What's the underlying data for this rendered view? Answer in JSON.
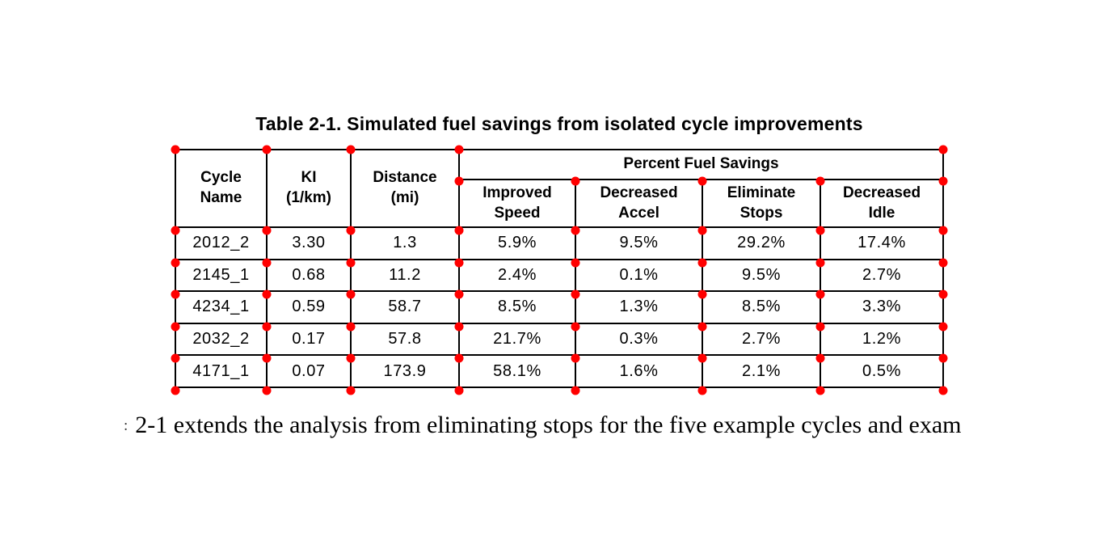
{
  "title": "Table 2-1. Simulated fuel savings from isolated cycle improvements",
  "table": {
    "header": {
      "cycle_name": "Cycle\nName",
      "ki": "KI\n(1/km)",
      "distance": "Distance\n(mi)",
      "group": "Percent Fuel Savings",
      "improved_speed": "Improved\nSpeed",
      "decreased_accel": "Decreased\nAccel",
      "eliminate_stops": "Eliminate\nStops",
      "decreased_idle": "Decreased\nIdle"
    },
    "rows": [
      [
        "2012_2",
        "3.30",
        "1.3",
        "5.9%",
        "9.5%",
        "29.2%",
        "17.4%"
      ],
      [
        "2145_1",
        "0.68",
        "11.2",
        "2.4%",
        "0.1%",
        "9.5%",
        "2.7%"
      ],
      [
        "4234_1",
        "0.59",
        "58.7",
        "8.5%",
        "1.3%",
        "8.5%",
        "3.3%"
      ],
      [
        "2032_2",
        "0.17",
        "57.8",
        "21.7%",
        "0.3%",
        "2.7%",
        "1.2%"
      ],
      [
        "4171_1",
        "0.07",
        "173.9",
        "58.1%",
        "1.6%",
        "2.1%",
        "0.5%"
      ]
    ]
  },
  "body_text": {
    "fragment": ":",
    "text": "2-1 extends the analysis from eliminating stops for the five example cycles and exam"
  },
  "annotation_dots": {
    "color": "#ff0000"
  }
}
